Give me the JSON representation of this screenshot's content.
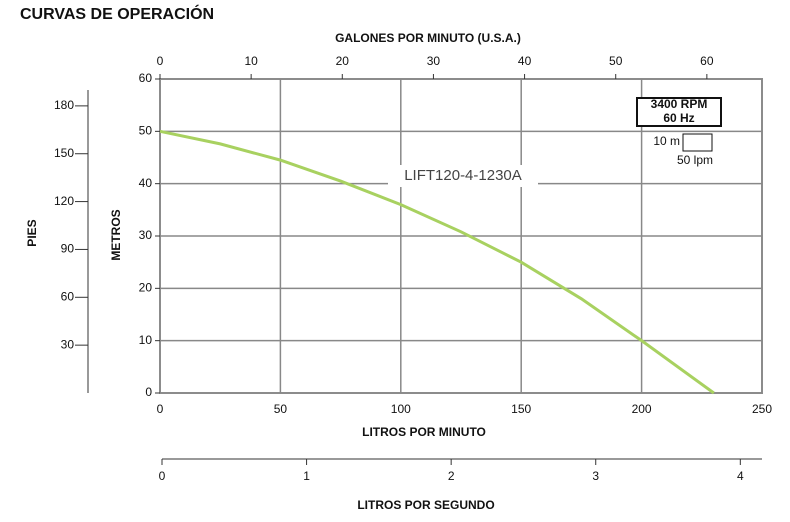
{
  "chart_data": {
    "type": "line",
    "title": "CURVAS DE OPERACIÓN",
    "xlabel": "LITROS POR MINUTO",
    "ylabel": "METROS",
    "xlim": [
      0,
      250
    ],
    "xticks": [
      0,
      50,
      100,
      150,
      200,
      250
    ],
    "ylim": [
      0,
      60
    ],
    "yticks": [
      0,
      10,
      20,
      30,
      40,
      50,
      60
    ],
    "grid": true,
    "series": [
      {
        "name": "LIFT120-4-1230A",
        "color": "#a8d160",
        "x": [
          0,
          25,
          50,
          75,
          100,
          125,
          150,
          175,
          200,
          230
        ],
        "values": [
          50,
          47.6,
          44.5,
          40.5,
          36,
          30.8,
          25,
          18,
          10,
          0
        ]
      }
    ],
    "top_axis": {
      "label": "GALONES POR MINUTO (U.S.A.)",
      "xlim": [
        0,
        66.05
      ],
      "xticks": [
        0,
        10,
        20,
        30,
        40,
        50,
        60
      ]
    },
    "left_axis": {
      "label": "PIES",
      "ylim": [
        0,
        196.85
      ],
      "yticks": [
        30,
        60,
        90,
        120,
        150,
        180
      ]
    },
    "bottom_axis": {
      "label": "LITROS POR SEGUNDO",
      "xlim": [
        0,
        4.15
      ],
      "xticks": [
        0,
        1,
        2,
        3,
        4
      ]
    },
    "legend": {
      "speed": "3400 RPM",
      "frequency": "60 Hz",
      "scale_y": "10 m",
      "scale_x": "50 lpm"
    }
  }
}
